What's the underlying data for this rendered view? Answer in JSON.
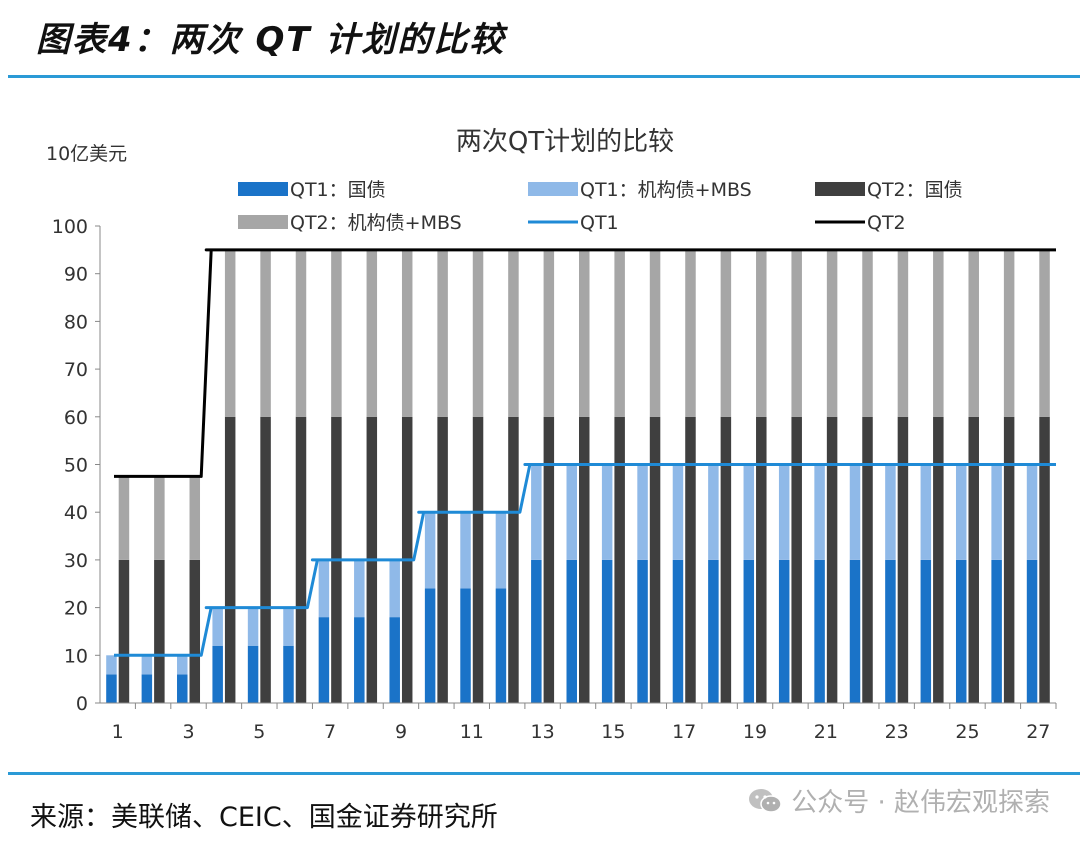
{
  "figure_title": "图表4：两次 QT 计划的比较",
  "source": "来源：美联储、CEIC、国金证券研究所",
  "watermark": {
    "text": "公众号 · 赵伟宏观探索",
    "icon": "wechat-icon"
  },
  "chart_data": {
    "type": "bar",
    "title": "两次QT计划的比较",
    "ylabel": "10亿美元",
    "xlabel": "",
    "ylim": [
      0,
      100
    ],
    "yticks": [
      0,
      10,
      20,
      30,
      40,
      50,
      60,
      70,
      80,
      90,
      100
    ],
    "grid": false,
    "legend_position": "top",
    "categories": [
      1,
      2,
      3,
      4,
      5,
      6,
      7,
      8,
      9,
      10,
      11,
      12,
      13,
      14,
      15,
      16,
      17,
      18,
      19,
      20,
      21,
      22,
      23,
      24,
      25,
      26,
      27
    ],
    "xtick_labels": [
      "1",
      "3",
      "5",
      "7",
      "9",
      "11",
      "13",
      "15",
      "17",
      "19",
      "21",
      "23",
      "25",
      "27"
    ],
    "stack_groups": [
      {
        "name": "QT1",
        "series": [
          {
            "name": "QT1：国债",
            "color": "#1a73c8",
            "values": [
              6,
              6,
              6,
              12,
              12,
              12,
              18,
              18,
              18,
              24,
              24,
              24,
              30,
              30,
              30,
              30,
              30,
              30,
              30,
              30,
              30,
              30,
              30,
              30,
              30,
              30,
              30
            ]
          },
          {
            "name": "QT1：机构债+MBS",
            "color": "#8fb9e8",
            "values": [
              4,
              4,
              4,
              8,
              8,
              8,
              12,
              12,
              12,
              16,
              16,
              16,
              20,
              20,
              20,
              20,
              20,
              20,
              20,
              20,
              20,
              20,
              20,
              20,
              20,
              20,
              20
            ]
          }
        ]
      },
      {
        "name": "QT2",
        "series": [
          {
            "name": "QT2：国债",
            "color": "#3f3f3f",
            "values": [
              30,
              30,
              30,
              60,
              60,
              60,
              60,
              60,
              60,
              60,
              60,
              60,
              60,
              60,
              60,
              60,
              60,
              60,
              60,
              60,
              60,
              60,
              60,
              60,
              60,
              60,
              60
            ]
          },
          {
            "name": "QT2：机构债+MBS",
            "color": "#a6a6a6",
            "values": [
              17.5,
              17.5,
              17.5,
              35,
              35,
              35,
              35,
              35,
              35,
              35,
              35,
              35,
              35,
              35,
              35,
              35,
              35,
              35,
              35,
              35,
              35,
              35,
              35,
              35,
              35,
              35,
              35
            ]
          }
        ]
      }
    ],
    "lines": [
      {
        "name": "QT1",
        "color": "#1f8ad6",
        "values": [
          10,
          10,
          10,
          20,
          20,
          20,
          30,
          30,
          30,
          40,
          40,
          40,
          50,
          50,
          50,
          50,
          50,
          50,
          50,
          50,
          50,
          50,
          50,
          50,
          50,
          50,
          50
        ]
      },
      {
        "name": "QT2",
        "color": "#000000",
        "values": [
          47.5,
          47.5,
          47.5,
          95,
          95,
          95,
          95,
          95,
          95,
          95,
          95,
          95,
          95,
          95,
          95,
          95,
          95,
          95,
          95,
          95,
          95,
          95,
          95,
          95,
          95,
          95,
          95
        ]
      }
    ],
    "legend": [
      {
        "label": "QT1：国债",
        "kind": "bar",
        "color": "#1a73c8"
      },
      {
        "label": "QT1：机构债+MBS",
        "kind": "bar",
        "color": "#8fb9e8"
      },
      {
        "label": "QT2：国债",
        "kind": "bar",
        "color": "#3f3f3f"
      },
      {
        "label": "QT2：机构债+MBS",
        "kind": "bar",
        "color": "#a6a6a6"
      },
      {
        "label": "QT1",
        "kind": "line",
        "color": "#1f8ad6"
      },
      {
        "label": "QT2",
        "kind": "line",
        "color": "#000000"
      }
    ]
  }
}
